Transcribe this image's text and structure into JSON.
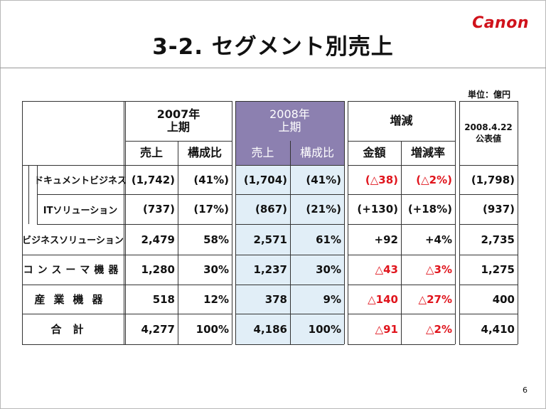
{
  "logo": "Canon",
  "title": "3-2. セグメント別売上",
  "unit": "単位：億円",
  "page_number": "6",
  "headers": {
    "y2007": [
      "2007年",
      "上期"
    ],
    "y2008": [
      "2008年",
      "上期"
    ],
    "diff": "増減",
    "forecast": [
      "2008.4.22",
      "公表値"
    ],
    "sales": "売上",
    "ratio": "構成比",
    "amount": "金額",
    "rate": "増減率"
  },
  "rows": [
    {
      "label": "ドキュメントビジネス",
      "s07": "(1,742)",
      "r07": "(41%)",
      "s08": "(1,704)",
      "r08": "(41%)",
      "amt": "(△38)",
      "rate": "(△2%)",
      "fc": "(1,798)",
      "red": true
    },
    {
      "label": "ITソリューション",
      "s07": "(737)",
      "r07": "(17%)",
      "s08": "(867)",
      "r08": "(21%)",
      "amt": "(+130)",
      "rate": "(+18%)",
      "fc": "(937)",
      "red": false
    },
    {
      "label": "ビジネスソリューション",
      "s07": "2,479",
      "r07": "58%",
      "s08": "2,571",
      "r08": "61%",
      "amt": "+92",
      "rate": "+4%",
      "fc": "2,735",
      "red": false
    },
    {
      "label": "コンスーマ機器",
      "s07": "1,280",
      "r07": "30%",
      "s08": "1,237",
      "r08": "30%",
      "amt": "△43",
      "rate": "△3%",
      "fc": "1,275",
      "red": true
    },
    {
      "label": "産業機器",
      "s07": "518",
      "r07": "12%",
      "s08": "378",
      "r08": "9%",
      "amt": "△140",
      "rate": "△27%",
      "fc": "400",
      "red": true
    },
    {
      "label": "合計",
      "s07": "4,277",
      "r07": "100%",
      "s08": "4,186",
      "r08": "100%",
      "amt": "△91",
      "rate": "△2%",
      "fc": "4,410",
      "red": true
    }
  ]
}
